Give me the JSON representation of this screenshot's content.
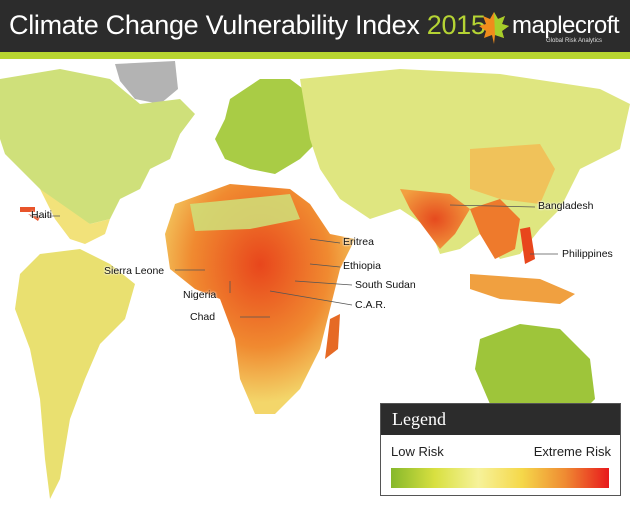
{
  "header": {
    "title": "Climate Change Vulnerability Index",
    "year": "2015"
  },
  "logo": {
    "name": "maplecroft",
    "tagline": "Global Risk Analytics",
    "icon": "maple-leaf-icon"
  },
  "map": {
    "labels": [
      "Haiti",
      "Sierra Leone",
      "Nigeria",
      "Chad",
      "Eritrea",
      "Ethiopia",
      "South Sudan",
      "C.A.R.",
      "Bangladesh",
      "Philippines"
    ],
    "colors": {
      "low": "#8dbd2a",
      "mid": "#f4ec8a",
      "high": "#e64a1e",
      "extreme": "#e8191c",
      "nodata": "#b3b3b3"
    }
  },
  "legend": {
    "title": "Legend",
    "low_label": "Low Risk",
    "high_label": "Extreme Risk",
    "gradient": [
      "#86b82b",
      "#d8e040",
      "#f6f29a",
      "#f5d84a",
      "#ef8a32",
      "#e8191c"
    ]
  }
}
